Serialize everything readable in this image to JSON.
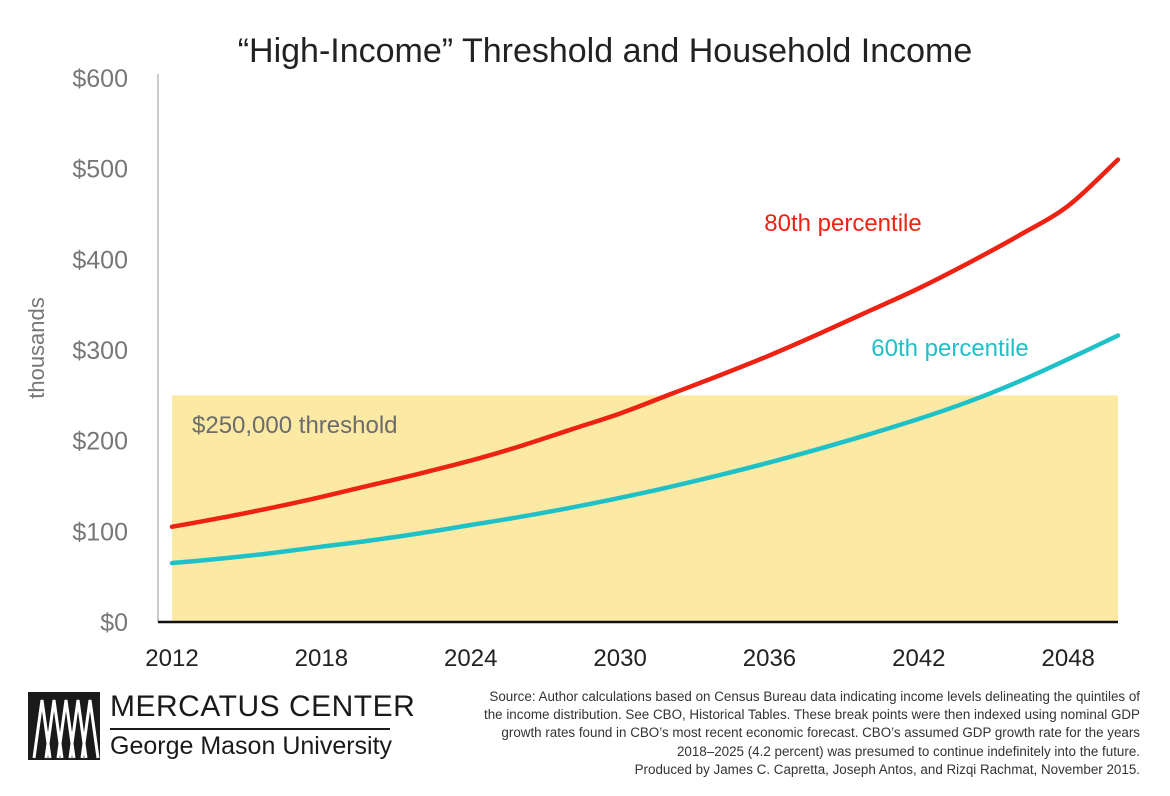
{
  "chart_data": {
    "type": "line",
    "title": "“High-Income” Threshold and Household Income",
    "ylabel": "thousands",
    "xlabel": "",
    "xlim": [
      2012,
      2050
    ],
    "ylim": [
      0,
      600
    ],
    "x_ticks": [
      2012,
      2018,
      2024,
      2030,
      2036,
      2042,
      2048
    ],
    "y_ticks": [
      0,
      100,
      200,
      300,
      400,
      500,
      600
    ],
    "y_tick_labels": [
      "$0",
      "$100",
      "$200",
      "$300",
      "$400",
      "$500",
      "$600"
    ],
    "threshold": {
      "label": "$250,000 threshold",
      "value": 250,
      "color": "#fce9a4"
    },
    "series": [
      {
        "name": "80th percentile",
        "color": "#ee2212",
        "x": [
          2012,
          2014,
          2016,
          2018,
          2020,
          2022,
          2024,
          2026,
          2028,
          2030,
          2032,
          2034,
          2036,
          2038,
          2040,
          2042,
          2044,
          2046,
          2048,
          2050
        ],
        "values": [
          105,
          115,
          126,
          138,
          151,
          164,
          178,
          194,
          212,
          230,
          251,
          272,
          294,
          318,
          343,
          368,
          396,
          426,
          459,
          510
        ]
      },
      {
        "name": "60th percentile",
        "color": "#1fc1c9",
        "x": [
          2012,
          2014,
          2016,
          2018,
          2020,
          2022,
          2024,
          2026,
          2028,
          2030,
          2032,
          2034,
          2036,
          2038,
          2040,
          2042,
          2044,
          2046,
          2048,
          2050
        ],
        "values": [
          65,
          70,
          76,
          83,
          90,
          98,
          107,
          116,
          126,
          137,
          149,
          162,
          176,
          191,
          207,
          224,
          243,
          265,
          290,
          316
        ]
      }
    ]
  },
  "logo": {
    "name": "MERCATUS CENTER",
    "subtitle": "George Mason University"
  },
  "source_lines": [
    "Source: Author calculations based on Census Bureau data indicating income levels delineating the quintiles of",
    "the income distribution. See CBO, Historical Tables. These break points were then indexed using nominal GDP",
    "growth rates found in CBO’s most recent economic forecast. CBO’s assumed GDP growth rate for the years",
    "2018–2025 (4.2 percent) was presumed to continue indefinitely into the future.",
    "Produced by James C. Capretta, Joseph Antos, and Rizqi Rachmat, November 2015."
  ]
}
